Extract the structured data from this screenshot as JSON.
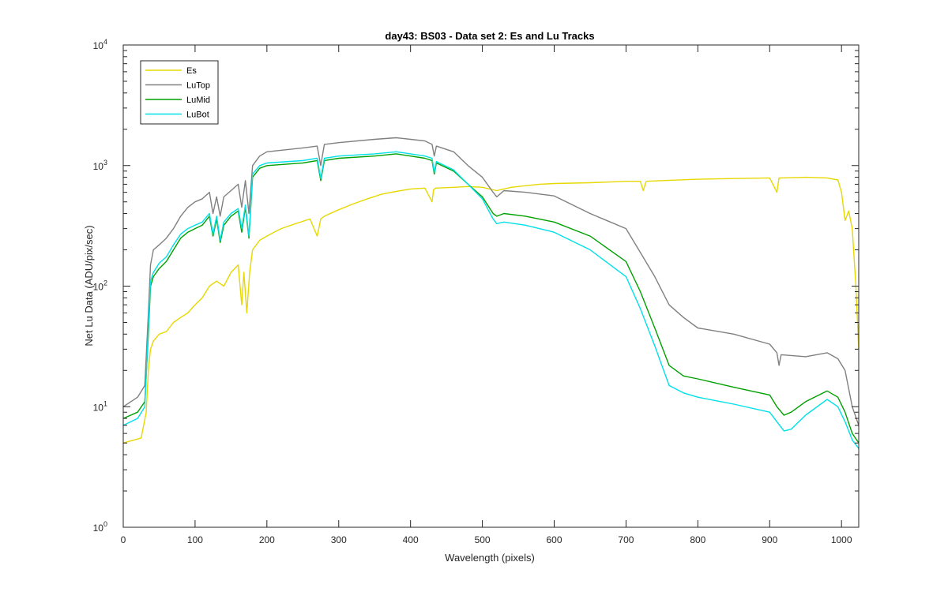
{
  "chart_data": {
    "type": "line",
    "title": "day43: BS03 - Data set 2: Es and Lu Tracks",
    "xlabel": "Wavelength (pixels)",
    "ylabel": "Net Lu Data (ADU/pix/sec)",
    "xlim": [
      0,
      1024
    ],
    "ylim": [
      1,
      10000
    ],
    "yscale": "log",
    "grid": false,
    "legend_position": "top-left",
    "x_ticks": [
      "0",
      "100",
      "200",
      "300",
      "400",
      "500",
      "600",
      "700",
      "800",
      "900",
      "1000"
    ],
    "y_ticks": [
      {
        "base": "10",
        "exp": "0"
      },
      {
        "base": "10",
        "exp": "1"
      },
      {
        "base": "10",
        "exp": "2"
      },
      {
        "base": "10",
        "exp": "3"
      },
      {
        "base": "10",
        "exp": "4"
      }
    ],
    "series": [
      {
        "name": "Es",
        "color": "#e6d800",
        "x": [
          0,
          25,
          32,
          35,
          38,
          42,
          50,
          60,
          70,
          80,
          90,
          100,
          110,
          120,
          130,
          140,
          150,
          160,
          165,
          168,
          172,
          176,
          180,
          190,
          200,
          210,
          220,
          240,
          260,
          270,
          275,
          280,
          300,
          320,
          340,
          360,
          380,
          400,
          420,
          430,
          432,
          435,
          460,
          480,
          500,
          520,
          540,
          560,
          580,
          600,
          650,
          700,
          720,
          724,
          728,
          750,
          800,
          850,
          900,
          910,
          913,
          916,
          950,
          980,
          995,
          1000,
          1005,
          1010,
          1015,
          1020,
          1024
        ],
        "y": [
          5,
          5.5,
          9,
          20,
          30,
          35,
          40,
          42,
          50,
          55,
          60,
          70,
          80,
          100,
          110,
          100,
          130,
          150,
          70,
          130,
          60,
          130,
          200,
          240,
          260,
          280,
          300,
          330,
          360,
          260,
          360,
          380,
          430,
          480,
          530,
          580,
          610,
          640,
          650,
          500,
          630,
          650,
          660,
          670,
          660,
          620,
          660,
          680,
          700,
          710,
          720,
          740,
          740,
          620,
          740,
          750,
          770,
          780,
          790,
          600,
          790,
          790,
          800,
          790,
          760,
          600,
          350,
          420,
          300,
          100,
          30
        ]
      },
      {
        "name": "LuTop",
        "color": "#808080",
        "x": [
          0,
          20,
          30,
          35,
          38,
          42,
          50,
          60,
          70,
          80,
          90,
          100,
          110,
          120,
          125,
          130,
          135,
          140,
          150,
          160,
          165,
          170,
          175,
          180,
          190,
          200,
          250,
          270,
          275,
          280,
          300,
          350,
          380,
          400,
          420,
          430,
          433,
          436,
          460,
          480,
          500,
          515,
          520,
          530,
          560,
          600,
          650,
          700,
          720,
          740,
          760,
          780,
          800,
          850,
          900,
          910,
          913,
          916,
          950,
          980,
          995,
          1005,
          1015,
          1024
        ],
        "y": [
          10,
          12,
          15,
          60,
          150,
          200,
          220,
          250,
          300,
          380,
          450,
          500,
          530,
          600,
          400,
          550,
          380,
          550,
          620,
          700,
          450,
          750,
          400,
          1000,
          1200,
          1300,
          1400,
          1450,
          1000,
          1500,
          1550,
          1650,
          1700,
          1650,
          1600,
          1500,
          1200,
          1450,
          1300,
          1000,
          800,
          600,
          550,
          620,
          600,
          560,
          400,
          300,
          190,
          120,
          70,
          55,
          45,
          40,
          33,
          28,
          22,
          27,
          26,
          28,
          25,
          20,
          10,
          7
        ]
      },
      {
        "name": "LuMid",
        "color": "#00a000",
        "x": [
          0,
          20,
          30,
          35,
          38,
          42,
          50,
          60,
          70,
          80,
          90,
          100,
          110,
          120,
          125,
          130,
          135,
          140,
          150,
          160,
          165,
          170,
          175,
          180,
          190,
          200,
          250,
          270,
          275,
          280,
          300,
          350,
          380,
          400,
          420,
          430,
          433,
          436,
          460,
          480,
          500,
          515,
          520,
          530,
          560,
          600,
          650,
          700,
          720,
          740,
          760,
          780,
          800,
          850,
          900,
          910,
          920,
          930,
          950,
          980,
          995,
          1005,
          1015,
          1024
        ],
        "y": [
          8,
          9,
          11,
          40,
          100,
          120,
          140,
          160,
          200,
          250,
          280,
          300,
          320,
          380,
          260,
          360,
          230,
          320,
          380,
          420,
          280,
          450,
          250,
          800,
          950,
          1000,
          1050,
          1100,
          750,
          1100,
          1150,
          1200,
          1250,
          1200,
          1150,
          1100,
          850,
          1050,
          900,
          700,
          550,
          400,
          380,
          400,
          380,
          340,
          260,
          160,
          90,
          45,
          22,
          18,
          17,
          14.5,
          12.5,
          10,
          8.5,
          9,
          11,
          13.5,
          12,
          9,
          6,
          5
        ]
      },
      {
        "name": "LuBot",
        "color": "#00e0e8",
        "x": [
          0,
          20,
          30,
          35,
          38,
          42,
          50,
          60,
          70,
          80,
          90,
          100,
          110,
          120,
          125,
          130,
          135,
          140,
          150,
          160,
          165,
          170,
          175,
          180,
          190,
          200,
          250,
          270,
          275,
          280,
          300,
          350,
          380,
          400,
          420,
          430,
          433,
          436,
          460,
          480,
          500,
          515,
          520,
          530,
          560,
          600,
          650,
          700,
          720,
          740,
          760,
          780,
          800,
          850,
          900,
          910,
          920,
          930,
          950,
          980,
          995,
          1005,
          1015,
          1024
        ],
        "y": [
          7,
          8,
          10,
          45,
          110,
          130,
          155,
          175,
          220,
          270,
          300,
          320,
          340,
          400,
          270,
          380,
          240,
          340,
          400,
          440,
          300,
          470,
          260,
          850,
          1000,
          1050,
          1100,
          1150,
          780,
          1150,
          1200,
          1250,
          1300,
          1250,
          1200,
          1150,
          880,
          1080,
          920,
          700,
          530,
          360,
          330,
          340,
          320,
          280,
          200,
          120,
          65,
          32,
          15,
          13,
          12,
          10.5,
          9,
          7.5,
          6.3,
          6.5,
          8.5,
          11.5,
          10,
          7.5,
          5.3,
          4.5
        ]
      }
    ]
  }
}
